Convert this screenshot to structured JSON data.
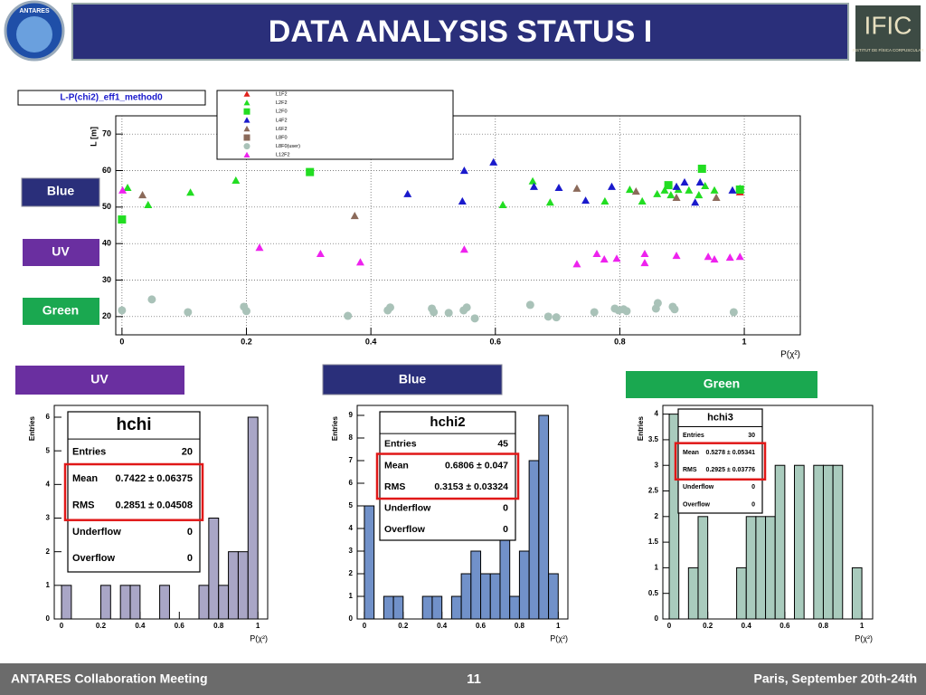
{
  "header": {
    "title": "DATA ANALYSIS STATUS I",
    "logo_left": "ANTARES",
    "logo_right": "IFIC",
    "logo_right_sub": "INSTITUT DE FÍSICA CORPUSCULAR"
  },
  "labels": {
    "side": [
      "Blue",
      "UV",
      "Green"
    ],
    "bottom": [
      "UV",
      "Blue",
      "Green"
    ]
  },
  "footer": {
    "left": "ANTARES Collaboration Meeting",
    "page": "11",
    "right": "Paris, September 20th-24th"
  },
  "chart_data": [
    {
      "type": "scatter",
      "title": "L-P(chi2)_eff1_method0",
      "x_label": "P(χ²)",
      "y_label": "L [m]",
      "xlim": [
        -0.01,
        1.09
      ],
      "ylim": [
        15,
        75
      ],
      "xticks": [
        0,
        0.2,
        0.4,
        0.6,
        0.8,
        1
      ],
      "yticks": [
        20,
        30,
        40,
        50,
        60,
        70
      ],
      "grid": true,
      "series": [
        {
          "name": "L1F2",
          "color": "#e0201b",
          "marker": "triangle",
          "x": [
            0.993
          ],
          "values": [
            54.1
          ]
        },
        {
          "name": "L2F2",
          "color": "#22dd22",
          "marker": "triangle",
          "x": [
            0.009,
            0.042,
            0.11,
            0.183,
            0.612,
            0.66,
            0.688,
            0.776,
            0.816,
            0.836,
            0.86,
            0.872,
            0.882,
            0.894,
            0.911,
            0.927,
            0.937,
            0.952,
            0.993
          ],
          "values": [
            55.3,
            50.6,
            54,
            57.3,
            50.6,
            57.1,
            51.3,
            51.6,
            54.8,
            51.6,
            53.6,
            54.6,
            53.3,
            54.8,
            54.6,
            53.3,
            55.8,
            54.6,
            55.1
          ]
        },
        {
          "name": "L2F0",
          "color": "#22dd22",
          "marker": "square",
          "x": [
            0,
            0.302,
            0.878,
            0.932,
            0.993
          ],
          "values": [
            46.6,
            59.6,
            56,
            60.5,
            54.8
          ]
        },
        {
          "name": "L4F2",
          "color": "#1a1acc",
          "marker": "triangle",
          "x": [
            0.459,
            0.547,
            0.55,
            0.597,
            0.662,
            0.702,
            0.745,
            0.787,
            0.891,
            0.904,
            0.921,
            0.929,
            0.981
          ],
          "values": [
            53.6,
            51.6,
            60,
            62.3,
            55.6,
            55.3,
            51.8,
            55.6,
            55.6,
            56.8,
            51.3,
            56.8,
            54.6
          ]
        },
        {
          "name": "L6F2",
          "color": "#8b6a5a",
          "marker": "triangle",
          "x": [
            0.033,
            0.374,
            0.731,
            0.826,
            0.891,
            0.955
          ],
          "values": [
            53.3,
            47.6,
            55.1,
            54.3,
            52.6,
            52.6
          ]
        },
        {
          "name": "L8F0",
          "color": "#8b6a5a",
          "marker": "square",
          "x": [],
          "values": []
        },
        {
          "name": "L8F0(user)",
          "color": "#a9c2b8",
          "marker": "circle",
          "x": [
            0,
            0.048,
            0.106,
            0.196,
            0.2,
            0.363,
            0.427,
            0.431,
            0.498,
            0.501,
            0.525,
            0.549,
            0.554,
            0.567,
            0.656,
            0.685,
            0.698,
            0.759,
            0.792,
            0.798,
            0.806,
            0.811,
            0.858,
            0.861,
            0.885,
            0.888,
            0.983
          ],
          "values": [
            21.7,
            24.7,
            21.2,
            22.7,
            21.5,
            20.2,
            21.7,
            22.5,
            22.2,
            21.2,
            21,
            21.7,
            22.5,
            19.5,
            23.2,
            20,
            19.8,
            21.2,
            22.2,
            21.7,
            22,
            21.5,
            22.2,
            23.7,
            22.7,
            22,
            21.2
          ]
        },
        {
          "name": "L12F2",
          "color": "#ee22ee",
          "marker": "triangle",
          "x": [
            0.001,
            0.221,
            0.319,
            0.383,
            0.55,
            0.731,
            0.763,
            0.775,
            0.795,
            0.84,
            0.84,
            0.891,
            0.942,
            0.952,
            0.977,
            0.993
          ],
          "values": [
            54.6,
            38.9,
            37.2,
            34.9,
            38.4,
            34.4,
            37.2,
            35.7,
            35.9,
            37.2,
            34.7,
            36.7,
            36.4,
            35.7,
            36.2,
            36.4
          ]
        }
      ]
    },
    {
      "type": "histogram",
      "x_label": "P(χ²)",
      "y_label": "Entries",
      "color": "#a9a6c6",
      "xlim": [
        -0.037,
        1.05
      ],
      "ylim": [
        0,
        6.35
      ],
      "xticks": [
        0,
        0.2,
        0.4,
        0.6,
        0.8,
        1
      ],
      "yticks": [
        0,
        1,
        2,
        3,
        4,
        5,
        6
      ],
      "bins": [
        0,
        0.05,
        0.1,
        0.15,
        0.2,
        0.25,
        0.3,
        0.35,
        0.4,
        0.45,
        0.5,
        0.55,
        0.6,
        0.65,
        0.7,
        0.75,
        0.8,
        0.85,
        0.9,
        0.95,
        1
      ],
      "values": [
        1,
        0,
        0,
        0,
        1,
        0,
        1,
        1,
        0,
        0,
        1,
        0,
        0,
        0,
        1,
        3,
        1,
        2,
        2,
        6
      ],
      "stats": {
        "title": "hchi",
        "rows": [
          [
            "Entries",
            "20"
          ],
          [
            "Mean",
            "0.7422 ± 0.06375"
          ],
          [
            "RMS",
            "0.2851 ± 0.04508"
          ],
          [
            "Underflow",
            "0"
          ],
          [
            "Overflow",
            "0"
          ]
        ]
      }
    },
    {
      "type": "histogram",
      "x_label": "P(χ²)",
      "y_label": "Entries",
      "color": "#7191c9",
      "xlim": [
        -0.037,
        1.05
      ],
      "ylim": [
        0,
        9.44
      ],
      "xticks": [
        0,
        0.2,
        0.4,
        0.6,
        0.8,
        1
      ],
      "yticks": [
        0,
        1,
        2,
        3,
        4,
        5,
        6,
        7,
        8,
        9
      ],
      "bins": [
        0,
        0.05,
        0.1,
        0.15,
        0.2,
        0.25,
        0.3,
        0.35,
        0.4,
        0.45,
        0.5,
        0.55,
        0.6,
        0.65,
        0.7,
        0.75,
        0.8,
        0.85,
        0.9,
        0.95,
        1
      ],
      "values": [
        5,
        0,
        1,
        1,
        0,
        0,
        1,
        1,
        0,
        1,
        2,
        3,
        2,
        2,
        4,
        1,
        3,
        7,
        9,
        2
      ],
      "stats": {
        "title": "hchi2",
        "rows": [
          [
            "Entries",
            "45"
          ],
          [
            "Mean",
            "0.6806 ±  0.047"
          ],
          [
            "RMS",
            "0.3153 ± 0.03324"
          ],
          [
            "Underflow",
            "0"
          ],
          [
            "Overflow",
            "0"
          ]
        ]
      }
    },
    {
      "type": "histogram",
      "x_label": "P(χ²)",
      "y_label": "Entries",
      "color": "#a9cbbd",
      "xlim": [
        -0.033,
        1.056
      ],
      "ylim": [
        0,
        4.17
      ],
      "xticks": [
        0,
        0.2,
        0.4,
        0.6,
        0.8,
        1
      ],
      "yticks": [
        0,
        0.5,
        1,
        1.5,
        2,
        2.5,
        3,
        3.5,
        4
      ],
      "bins": [
        0,
        0.05,
        0.1,
        0.15,
        0.2,
        0.25,
        0.3,
        0.35,
        0.4,
        0.45,
        0.5,
        0.55,
        0.6,
        0.65,
        0.7,
        0.75,
        0.8,
        0.85,
        0.9,
        0.95,
        1
      ],
      "values": [
        4,
        0,
        1,
        2,
        0,
        0,
        0,
        1,
        2,
        2,
        2,
        3,
        0,
        3,
        0,
        3,
        3,
        3,
        0,
        1
      ],
      "stats": {
        "title": "hchi3",
        "rows": [
          [
            "Entries",
            "30"
          ],
          [
            "Mean",
            "0.5278 ± 0.05341"
          ],
          [
            "RMS",
            "0.2925 ± 0.03776"
          ],
          [
            "Underflow",
            "0"
          ],
          [
            "Overflow",
            "0"
          ]
        ]
      }
    }
  ]
}
